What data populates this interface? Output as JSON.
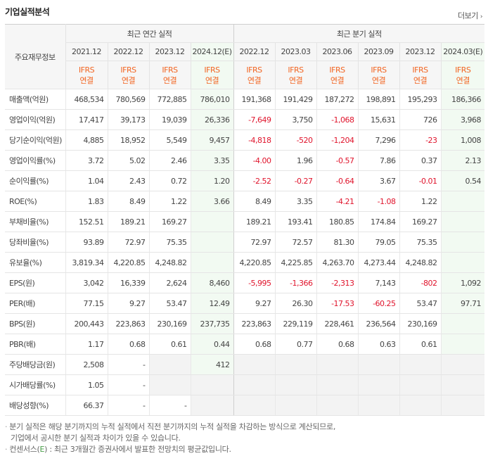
{
  "header": {
    "title": "기업실적분석",
    "more_label": "더보기",
    "more_arrow": "›"
  },
  "table": {
    "label_header": "주요재무정보",
    "annual_group": "최근 연간 실적",
    "quarter_group": "최근 분기 실적",
    "periods": [
      "2021.12",
      "2022.12",
      "2023.12",
      "2024.12(E)",
      "2022.12",
      "2023.03",
      "2023.06",
      "2023.09",
      "2023.12",
      "2024.03(E)"
    ],
    "standard_line1": "IFRS",
    "standard_line2": "연결",
    "rows": [
      {
        "label": "매출액(억원)",
        "values": [
          "468,534",
          "780,569",
          "772,885",
          "786,010",
          "191,368",
          "191,429",
          "187,272",
          "198,891",
          "195,293",
          "186,366"
        ]
      },
      {
        "label": "영업이익(억원)",
        "values": [
          "17,417",
          "39,173",
          "19,039",
          "26,336",
          "-7,649",
          "3,750",
          "-1,068",
          "15,631",
          "726",
          "3,968"
        ]
      },
      {
        "label": "당기순이익(억원)",
        "values": [
          "4,885",
          "18,952",
          "5,549",
          "9,457",
          "-4,818",
          "-520",
          "-1,204",
          "7,296",
          "-23",
          "1,008"
        ]
      },
      {
        "label": "영업이익률(%)",
        "values": [
          "3.72",
          "5.02",
          "2.46",
          "3.35",
          "-4.00",
          "1.96",
          "-0.57",
          "7.86",
          "0.37",
          "2.13"
        ]
      },
      {
        "label": "순이익률(%)",
        "values": [
          "1.04",
          "2.43",
          "0.72",
          "1.20",
          "-2.52",
          "-0.27",
          "-0.64",
          "3.67",
          "-0.01",
          "0.54"
        ]
      },
      {
        "label": "ROE(%)",
        "values": [
          "1.83",
          "8.49",
          "1.22",
          "3.66",
          "8.49",
          "3.35",
          "-4.21",
          "-1.08",
          "1.22",
          ""
        ]
      },
      {
        "label": "부채비율(%)",
        "values": [
          "152.51",
          "189.21",
          "169.27",
          "",
          "189.21",
          "193.41",
          "180.85",
          "174.84",
          "169.27",
          ""
        ]
      },
      {
        "label": "당좌비율(%)",
        "values": [
          "93.89",
          "72.97",
          "75.35",
          "",
          "72.97",
          "72.57",
          "81.30",
          "79.05",
          "75.35",
          ""
        ]
      },
      {
        "label": "유보율(%)",
        "values": [
          "3,819.34",
          "4,220.85",
          "4,248.82",
          "",
          "4,220.85",
          "4,225.85",
          "4,263.70",
          "4,273.44",
          "4,248.82",
          ""
        ]
      },
      {
        "label": "EPS(원)",
        "values": [
          "3,042",
          "16,339",
          "2,624",
          "8,460",
          "-5,995",
          "-1,366",
          "-2,313",
          "7,143",
          "-802",
          "1,092"
        ]
      },
      {
        "label": "PER(배)",
        "values": [
          "77.15",
          "9.27",
          "53.47",
          "12.49",
          "9.27",
          "26.30",
          "-17.53",
          "-60.25",
          "53.47",
          "97.71"
        ]
      },
      {
        "label": "BPS(원)",
        "values": [
          "200,443",
          "223,863",
          "230,169",
          "237,735",
          "223,863",
          "229,119",
          "228,461",
          "236,564",
          "230,169",
          ""
        ]
      },
      {
        "label": "PBR(배)",
        "values": [
          "1.17",
          "0.68",
          "0.61",
          "0.44",
          "0.68",
          "0.77",
          "0.68",
          "0.63",
          "0.61",
          ""
        ]
      },
      {
        "label": "주당배당금(원)",
        "values": [
          "2,508",
          "-",
          "",
          "412",
          "",
          "",
          "",
          "",
          "",
          ""
        ]
      },
      {
        "label": "시가배당률(%)",
        "values": [
          "1.05",
          "-",
          "",
          "",
          "",
          "",
          "",
          "",
          "",
          ""
        ]
      },
      {
        "label": "배당성향(%)",
        "values": [
          "66.37",
          "-",
          "-",
          "",
          "",
          "",
          "",
          "",
          "",
          ""
        ]
      }
    ]
  },
  "notes": {
    "line1": "분기 실적은 해당 분기까지의 누적 실적에서 직전 분기까지의 누적 실적을 차감하는 방식으로 계산되므로,",
    "line2": "기업에서 공시한 분기 실적과 차이가 있을 수 있습니다.",
    "line3_prefix": "컨센서스(",
    "line3_e": "E",
    "line3_suffix": ") : 최근 3개월간 증권사에서 발표한 전망치의 평균값입니다."
  },
  "colors": {
    "negative": "#e0142c",
    "ifrs": "#f26522",
    "estimate_bg": "#f2faf2",
    "header_bg": "#f6f6f6"
  }
}
